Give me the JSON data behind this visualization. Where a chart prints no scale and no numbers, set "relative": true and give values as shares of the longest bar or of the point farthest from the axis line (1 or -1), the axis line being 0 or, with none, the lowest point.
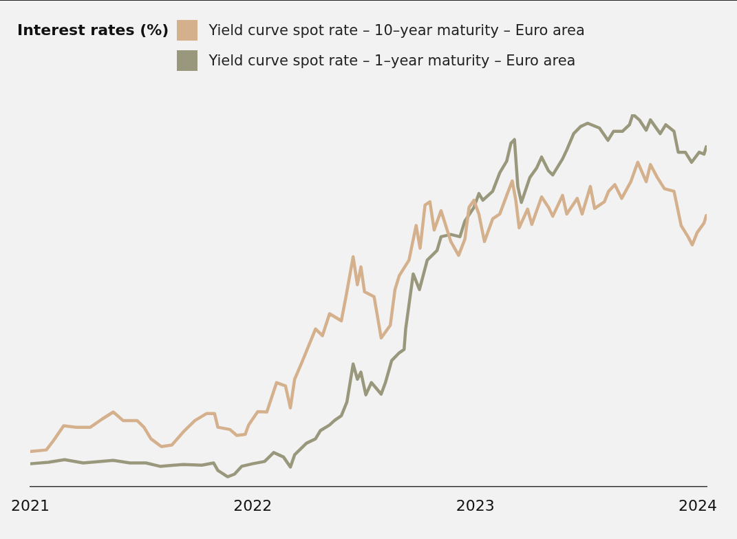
{
  "chart_data": {
    "type": "line",
    "title": "Interest rates (%)",
    "relative": true,
    "legend": "top left",
    "grid": false,
    "marker": "none",
    "line_style": "solid",
    "xlim": [
      2021,
      2024.04
    ],
    "xticks": [
      2021,
      2022,
      2023,
      2024
    ],
    "series": [
      {
        "name": "Yield curve spot rate – 10–year maturity – Euro area",
        "color": "#d4b08c",
        "x": [
          2021.003,
          2021.072,
          2021.103,
          2021.15,
          2021.207,
          2021.27,
          2021.323,
          2021.373,
          2021.417,
          2021.48,
          2021.511,
          2021.542,
          2021.589,
          2021.636,
          2021.687,
          2021.74,
          2021.793,
          2021.828,
          2021.843,
          2021.897,
          2021.928,
          2021.966,
          2021.981,
          2022.022,
          2022.063,
          2022.107,
          2022.147,
          2022.169,
          2022.188,
          2022.219,
          2022.282,
          2022.313,
          2022.345,
          2022.398,
          2022.42,
          2022.451,
          2022.47,
          2022.486,
          2022.502,
          2022.545,
          2022.577,
          2022.618,
          2022.639,
          2022.658,
          2022.702,
          2022.734,
          2022.752,
          2022.774,
          2022.796,
          2022.815,
          2022.846,
          2022.89,
          2022.925,
          2022.953,
          2022.972,
          2022.994,
          2023.016,
          2023.041,
          2023.078,
          2023.11,
          2023.141,
          2023.166,
          2023.182,
          2023.197,
          2023.235,
          2023.254,
          2023.298,
          2023.329,
          2023.348,
          2023.392,
          2023.411,
          2023.458,
          2023.48,
          2023.517,
          2023.536,
          2023.58,
          2023.599,
          2023.627,
          2023.658,
          2023.699,
          2023.73,
          2023.768,
          2023.787,
          2023.818,
          2023.85,
          2023.893,
          2023.925,
          2023.956,
          2023.975,
          2023.997,
          2024.028,
          2024.038
        ],
        "values": [
          0.094,
          0.098,
          0.122,
          0.163,
          0.159,
          0.159,
          0.181,
          0.2,
          0.177,
          0.177,
          0.159,
          0.128,
          0.107,
          0.111,
          0.146,
          0.177,
          0.196,
          0.196,
          0.159,
          0.153,
          0.137,
          0.14,
          0.165,
          0.201,
          0.2,
          0.279,
          0.27,
          0.211,
          0.288,
          0.331,
          0.423,
          0.405,
          0.464,
          0.445,
          0.514,
          0.617,
          0.542,
          0.59,
          0.523,
          0.51,
          0.399,
          0.433,
          0.529,
          0.566,
          0.608,
          0.701,
          0.64,
          0.756,
          0.765,
          0.689,
          0.741,
          0.658,
          0.621,
          0.664,
          0.75,
          0.769,
          0.732,
          0.658,
          0.719,
          0.732,
          0.782,
          0.821,
          0.769,
          0.695,
          0.745,
          0.704,
          0.778,
          0.75,
          0.726,
          0.782,
          0.732,
          0.774,
          0.732,
          0.806,
          0.747,
          0.765,
          0.793,
          0.811,
          0.774,
          0.819,
          0.871,
          0.819,
          0.865,
          0.83,
          0.8,
          0.793,
          0.701,
          0.671,
          0.649,
          0.682,
          0.708,
          0.728
        ]
      },
      {
        "name": "Yield curve spot rate – 1–year maturity – Euro area",
        "color": "#9a987c",
        "x": [
          2021.003,
          2021.082,
          2021.154,
          2021.238,
          2021.373,
          2021.448,
          2021.52,
          2021.583,
          2021.687,
          2021.771,
          2021.824,
          2021.843,
          2021.887,
          2021.918,
          2021.95,
          2022.0,
          2022.053,
          2022.094,
          2022.138,
          2022.169,
          2022.188,
          2022.241,
          2022.282,
          2022.304,
          2022.345,
          2022.367,
          2022.398,
          2022.423,
          2022.451,
          2022.47,
          2022.486,
          2022.508,
          2022.533,
          2022.577,
          2022.596,
          2022.624,
          2022.658,
          2022.68,
          2022.687,
          2022.721,
          2022.749,
          2022.784,
          2022.828,
          2022.846,
          2022.89,
          2022.931,
          2022.953,
          2022.994,
          2023.016,
          2023.034,
          2023.078,
          2023.11,
          2023.141,
          2023.16,
          2023.176,
          2023.191,
          2023.207,
          2023.245,
          2023.276,
          2023.298,
          2023.329,
          2023.348,
          2023.392,
          2023.411,
          2023.442,
          2023.473,
          2023.505,
          2023.558,
          2023.596,
          2023.621,
          2023.661,
          2023.693,
          2023.708,
          2023.737,
          2023.768,
          2023.787,
          2023.831,
          2023.856,
          2023.893,
          2023.912,
          2023.944,
          2023.972,
          2024.006,
          2024.028,
          2024.038
        ],
        "values": [
          0.061,
          0.065,
          0.072,
          0.063,
          0.07,
          0.063,
          0.063,
          0.054,
          0.059,
          0.057,
          0.063,
          0.043,
          0.026,
          0.033,
          0.054,
          0.061,
          0.067,
          0.091,
          0.079,
          0.052,
          0.085,
          0.116,
          0.128,
          0.15,
          0.165,
          0.177,
          0.19,
          0.227,
          0.329,
          0.288,
          0.307,
          0.246,
          0.279,
          0.248,
          0.279,
          0.338,
          0.359,
          0.368,
          0.423,
          0.571,
          0.529,
          0.608,
          0.634,
          0.671,
          0.677,
          0.671,
          0.713,
          0.75,
          0.787,
          0.769,
          0.793,
          0.843,
          0.874,
          0.922,
          0.932,
          0.806,
          0.763,
          0.83,
          0.856,
          0.885,
          0.848,
          0.837,
          0.88,
          0.904,
          0.948,
          0.967,
          0.976,
          0.963,
          0.93,
          0.954,
          0.954,
          0.972,
          1.0,
          0.985,
          0.957,
          0.985,
          0.948,
          0.972,
          0.954,
          0.898,
          0.898,
          0.871,
          0.898,
          0.893,
          0.913
        ]
      }
    ]
  }
}
